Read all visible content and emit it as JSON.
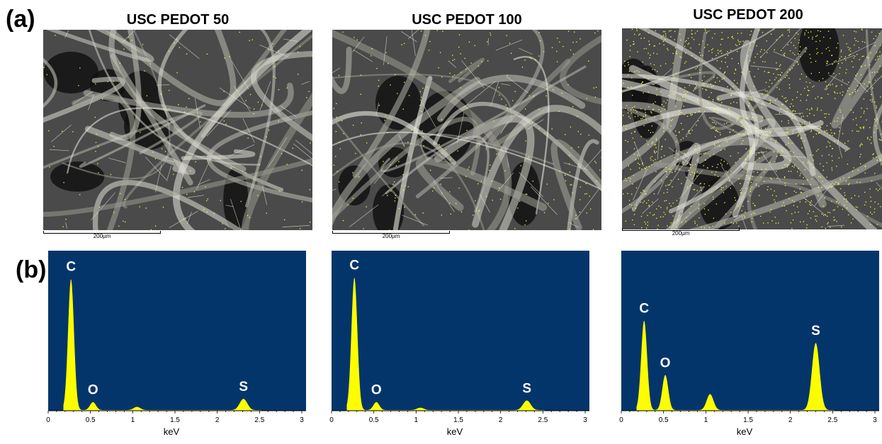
{
  "panel_labels": {
    "a": "(a)",
    "b": "(b)"
  },
  "scale_label": "200µm",
  "colors": {
    "spectrum_bg": "#04356a",
    "spectrum_fill": "#fdfd00",
    "map_dots": "#ffff40"
  },
  "panels": [
    {
      "title": "USC PEDOT 50"
    },
    {
      "title": "USC PEDOT 100"
    },
    {
      "title": "USC PEDOT 200"
    }
  ],
  "chart_data": [
    {
      "type": "area",
      "title": "",
      "xlabel": "keV",
      "ylabel": "",
      "xlim": [
        0,
        3.05
      ],
      "ylim": [
        0,
        1.0
      ],
      "xticks": [
        "0",
        "0.5",
        "1",
        "1.5",
        "2",
        "2.5",
        "3"
      ],
      "peaks": [
        {
          "label": "C",
          "x": 0.27,
          "y": 0.82
        },
        {
          "label": "O",
          "x": 0.53,
          "y": 0.05
        },
        {
          "label": "",
          "x": 1.05,
          "y": 0.02
        },
        {
          "label": "S",
          "x": 2.31,
          "y": 0.07
        }
      ]
    },
    {
      "type": "area",
      "title": "",
      "xlabel": "keV",
      "ylabel": "",
      "xlim": [
        0,
        3.05
      ],
      "ylim": [
        0,
        1.0
      ],
      "xticks": [
        "0",
        "0.5",
        "1",
        "1.5",
        "2",
        "2.5",
        "3"
      ],
      "peaks": [
        {
          "label": "C",
          "x": 0.27,
          "y": 0.83
        },
        {
          "label": "O",
          "x": 0.53,
          "y": 0.05
        },
        {
          "label": "",
          "x": 1.05,
          "y": 0.015
        },
        {
          "label": "S",
          "x": 2.31,
          "y": 0.06
        }
      ]
    },
    {
      "type": "area",
      "title": "",
      "xlabel": "keV",
      "ylabel": "",
      "xlim": [
        0,
        3.05
      ],
      "ylim": [
        0,
        1.0
      ],
      "xticks": [
        "0",
        "0.5",
        "1",
        "1.5",
        "2",
        "2.5",
        "3"
      ],
      "peaks": [
        {
          "label": "C",
          "x": 0.27,
          "y": 0.56
        },
        {
          "label": "O",
          "x": 0.52,
          "y": 0.22
        },
        {
          "label": "",
          "x": 1.05,
          "y": 0.1
        },
        {
          "label": "S",
          "x": 2.3,
          "y": 0.42
        }
      ]
    }
  ]
}
